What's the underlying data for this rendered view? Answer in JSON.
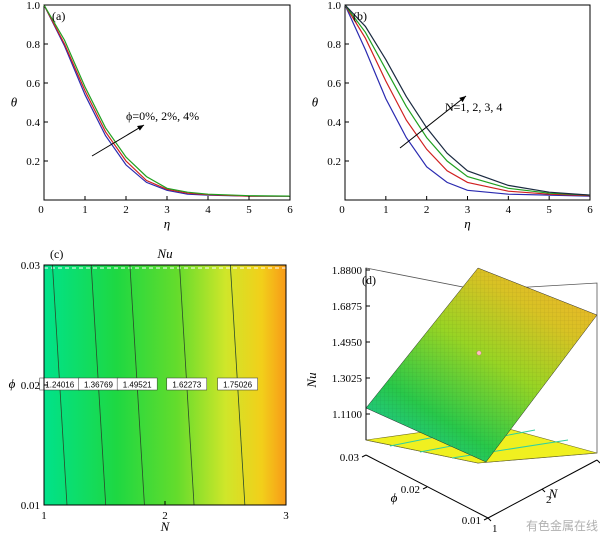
{
  "chart_data": [
    {
      "panel": "(a)",
      "type": "line",
      "xlabel": "η",
      "ylabel": "θ",
      "xlim": [
        0,
        6
      ],
      "ylim": [
        0,
        1
      ],
      "xticks": [
        "1",
        "2",
        "3",
        "4",
        "5",
        "6"
      ],
      "yticks": [
        "0",
        "0.2",
        "0.4",
        "0.6",
        "0.8",
        "1.0"
      ],
      "annotation": "ϕ=0%, 2%, 4%",
      "colors": [
        "#2a2ab0",
        "#d02020",
        "#20a020"
      ],
      "series": [
        {
          "x": [
            0,
            0.5,
            1,
            1.5,
            2,
            2.5,
            3,
            3.5,
            4,
            5,
            6
          ],
          "values": [
            1.0,
            0.79,
            0.54,
            0.33,
            0.18,
            0.09,
            0.05,
            0.03,
            0.025,
            0.02,
            0.02
          ]
        },
        {
          "x": [
            0,
            0.5,
            1,
            1.5,
            2,
            2.5,
            3,
            3.5,
            4,
            5,
            6
          ],
          "values": [
            1.0,
            0.8,
            0.56,
            0.35,
            0.2,
            0.1,
            0.055,
            0.035,
            0.027,
            0.02,
            0.02
          ]
        },
        {
          "x": [
            0,
            0.5,
            1,
            1.5,
            2,
            2.5,
            3,
            3.5,
            4,
            5,
            6
          ],
          "values": [
            1.0,
            0.82,
            0.58,
            0.37,
            0.22,
            0.12,
            0.06,
            0.04,
            0.03,
            0.022,
            0.02
          ]
        }
      ]
    },
    {
      "panel": "(b)",
      "type": "line",
      "xlabel": "η",
      "ylabel": "θ",
      "xlim": [
        0,
        6
      ],
      "ylim": [
        0,
        1
      ],
      "xticks": [
        "1",
        "2",
        "3",
        "4",
        "5",
        "6"
      ],
      "yticks": [
        "0",
        "0.2",
        "0.4",
        "0.6",
        "0.8",
        "1.0"
      ],
      "annotation": "N=1, 2, 3, 4",
      "colors": [
        "#2a2ab0",
        "#d02020",
        "#20a020",
        "#1a2a40"
      ],
      "series": [
        {
          "x": [
            0,
            0.5,
            1,
            1.5,
            2,
            2.5,
            3,
            4,
            5,
            6
          ],
          "values": [
            1.0,
            0.77,
            0.52,
            0.32,
            0.17,
            0.09,
            0.05,
            0.03,
            0.025,
            0.02
          ]
        },
        {
          "x": [
            0,
            0.5,
            1,
            1.5,
            2,
            2.5,
            3,
            4,
            5,
            6
          ],
          "values": [
            1.0,
            0.83,
            0.61,
            0.41,
            0.26,
            0.15,
            0.09,
            0.045,
            0.03,
            0.022
          ]
        },
        {
          "x": [
            0,
            0.5,
            1,
            1.5,
            2,
            2.5,
            3,
            4,
            5,
            6
          ],
          "values": [
            1.0,
            0.86,
            0.67,
            0.48,
            0.32,
            0.2,
            0.12,
            0.06,
            0.035,
            0.025
          ]
        },
        {
          "x": [
            0,
            0.5,
            1,
            1.5,
            2,
            2.5,
            3,
            4,
            5,
            6
          ],
          "values": [
            1.0,
            0.89,
            0.72,
            0.53,
            0.37,
            0.24,
            0.15,
            0.075,
            0.04,
            0.025
          ]
        }
      ]
    },
    {
      "panel": "(c)",
      "type": "heatmap",
      "title": "Nu",
      "xlabel": "N",
      "ylabel": "ϕ",
      "xlim": [
        1,
        3
      ],
      "ylim": [
        0.01,
        0.03
      ],
      "xticks": [
        "1",
        "2",
        "3"
      ],
      "yticks": [
        "0.01",
        "0.02",
        "0.03"
      ],
      "contour_labels": [
        "1.24016",
        "1.36769",
        "1.49521",
        "1.62273",
        "1.75026"
      ],
      "contour_values": [
        1.24016,
        1.36769,
        1.49521,
        1.62273,
        1.75026
      ],
      "contour_N_at_phi_002": [
        1.13,
        1.45,
        1.77,
        2.18,
        2.6
      ],
      "colors": [
        "#00e28a",
        "#2ed23a",
        "#bbe82a",
        "#f0d81a",
        "#f8a218"
      ]
    },
    {
      "panel": "(d)",
      "type": "surface",
      "zlabel": "Nu",
      "xlabel": "N",
      "ylabel": "ϕ",
      "zticks": [
        "1.1100",
        "1.3025",
        "1.4950",
        "1.6875",
        "1.8800"
      ],
      "xticks": [
        "1",
        "2",
        "3"
      ],
      "yticks": [
        "0.01",
        "0.02",
        "0.03"
      ],
      "colors": [
        "#16c8b4",
        "#2ec83c",
        "#a8d820",
        "#e0c020",
        "#ffff33"
      ]
    }
  ],
  "panels": {
    "a": "(a)",
    "b": "(b)",
    "c": "(c)",
    "d": "(d)"
  },
  "watermark": "有色金属在线"
}
